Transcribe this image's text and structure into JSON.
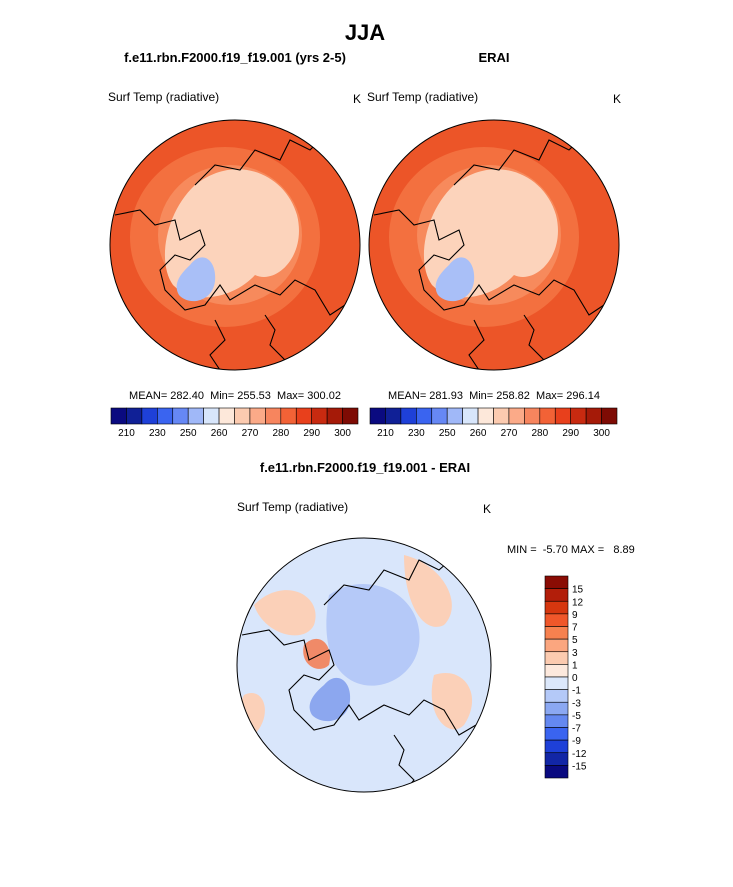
{
  "header": {
    "title": "JJA"
  },
  "panels": [
    {
      "case": "f.e11.rbn.F2000.f19_f19.001 (yrs 2-5)",
      "variable": "Surf Temp (radiative)",
      "units": "K",
      "stats": "MEAN= 282.40  Min= 255.53  Max= 300.02",
      "colorbar": {
        "labels": [
          210,
          230,
          250,
          260,
          270,
          280,
          290,
          300
        ],
        "colors": [
          "#0a0a80",
          "#102096",
          "#1e40d8",
          "#3a64f0",
          "#6688f5",
          "#a0b8f8",
          "#d8e6fb",
          "#fde8da",
          "#fccbb0",
          "#fbaa88",
          "#f7855e",
          "#f26236",
          "#e8401c",
          "#c82a10",
          "#a51a08",
          "#7e0b04"
        ]
      }
    },
    {
      "case": "ERAI",
      "variable": "Surf Temp (radiative)",
      "units": "K",
      "stats": "MEAN= 281.93  Min= 258.82  Max= 296.14",
      "colorbar": {
        "labels": [
          210,
          230,
          250,
          260,
          270,
          280,
          290,
          300
        ],
        "colors": [
          "#0a0a80",
          "#102096",
          "#1e40d8",
          "#3a64f0",
          "#6688f5",
          "#a0b8f8",
          "#d8e6fb",
          "#fde8da",
          "#fccbb0",
          "#fbaa88",
          "#f7855e",
          "#f26236",
          "#e8401c",
          "#c82a10",
          "#a51a08",
          "#7e0b04"
        ]
      }
    }
  ],
  "difference": {
    "case": "f.e11.rbn.F2000.f19_f19.001 - ERAI",
    "variable": "Surf Temp (radiative)",
    "units": "K",
    "stats": "MIN =  -5.70 MAX =   8.89",
    "colorbar": {
      "labels": [
        15,
        12,
        9,
        7,
        5,
        3,
        1,
        0,
        -1,
        -3,
        -5,
        -7,
        -9,
        -12,
        -15
      ],
      "colors": [
        "#8a0c04",
        "#b21e0a",
        "#d6370f",
        "#f0572a",
        "#f7814f",
        "#fba67f",
        "#fccbb0",
        "#fde9dd",
        "#dce8fb",
        "#b4c9f8",
        "#8ba8f2",
        "#6488f0",
        "#3a64f0",
        "#1e40d8",
        "#1226a6",
        "#0a0a80"
      ]
    }
  }
}
